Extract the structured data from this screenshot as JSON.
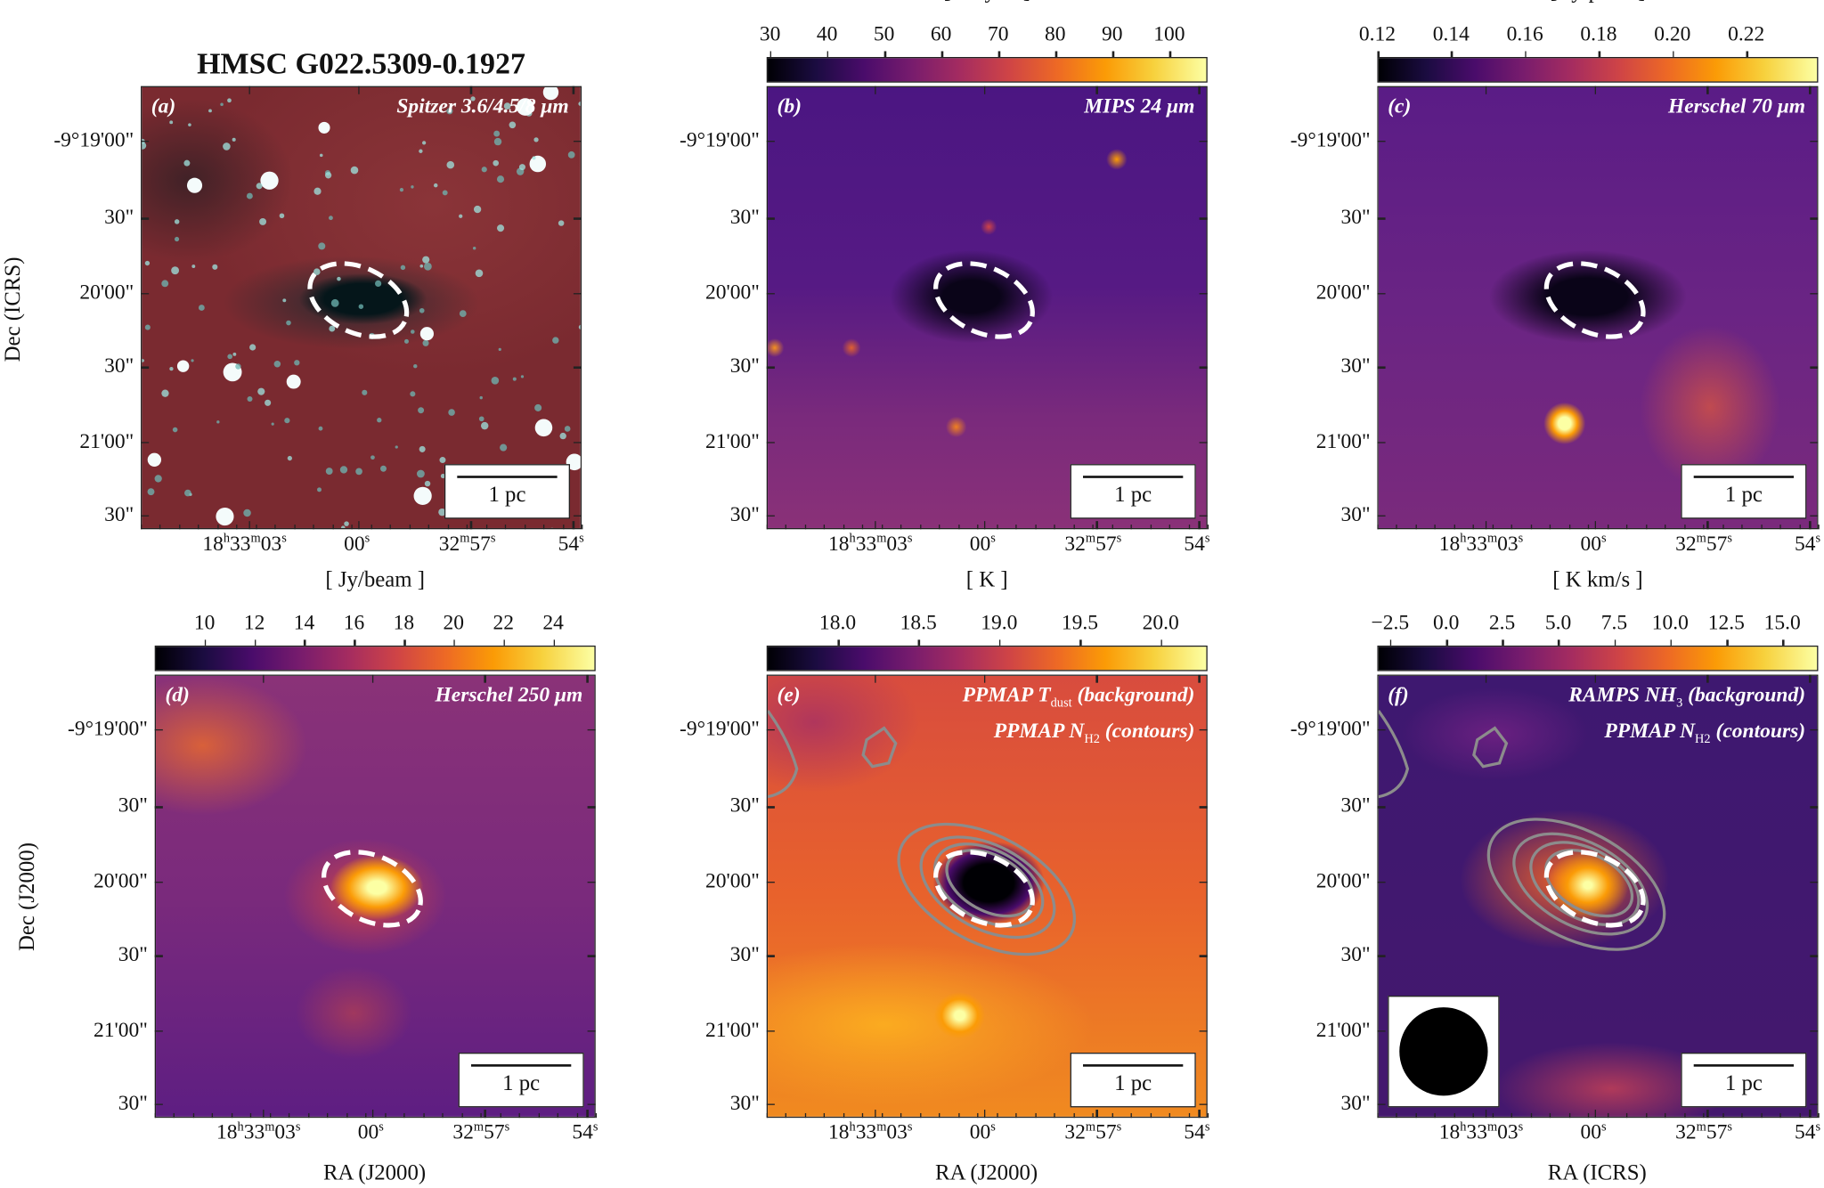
{
  "figure_title": "HMSC G022.5309-0.1927",
  "axis_labels": {
    "row1_ylabel": "Dec (ICRS)",
    "row2_ylabel": "Dec (J2000)",
    "xlabels": [
      "RA (J2000)",
      "RA (J2000)",
      "RA (ICRS)"
    ]
  },
  "dec_ticks": [
    "-9°19'00\"",
    "30\"",
    "20'00\"",
    "30\"",
    "21'00\"",
    "30\""
  ],
  "ra_ticks": [
    "18h33m03s",
    "00s",
    "32m57s",
    "54s"
  ],
  "scale_bar_label": "1 pc",
  "colors": {
    "colormap": "inferno",
    "ellipse": "#ffffff",
    "contours": "#8c8c8c"
  },
  "chart_data": [
    {
      "type": "heatmap",
      "panel": "(a)",
      "label": [
        "Spitzer 3.6/4.5/8 μm"
      ],
      "colorbar": null
    },
    {
      "type": "heatmap",
      "panel": "(b)",
      "label": [
        "MIPS 24 μm"
      ],
      "colorbar": {
        "unit": "[ MJy/sr ]",
        "ticks": [
          "30",
          "40",
          "50",
          "60",
          "70",
          "80",
          "90",
          "100"
        ],
        "tick_values": [
          30,
          40,
          50,
          60,
          70,
          80,
          90,
          100
        ],
        "range": [
          29.4,
          106.7
        ]
      }
    },
    {
      "type": "heatmap",
      "panel": "(c)",
      "label": [
        "Herschel 70 μm"
      ],
      "colorbar": {
        "unit": "[ Jy/pixel ]",
        "ticks": [
          "0.12",
          "0.14",
          "0.16",
          "0.18",
          "0.20",
          "0.22"
        ],
        "tick_values": [
          0.12,
          0.14,
          0.16,
          0.18,
          0.2,
          0.22
        ],
        "range": [
          0.12,
          0.2395
        ]
      }
    },
    {
      "type": "heatmap",
      "panel": "(d)",
      "label": [
        "Herschel 250 μm"
      ],
      "colorbar": {
        "unit": "[ Jy/beam ]",
        "ticks": [
          "10",
          "12",
          "14",
          "16",
          "18",
          "20",
          "22",
          "24"
        ],
        "tick_values": [
          10,
          12,
          14,
          16,
          18,
          20,
          22,
          24
        ],
        "range": [
          8.0,
          25.7
        ]
      }
    },
    {
      "type": "heatmap",
      "panel": "(e)",
      "label": [
        "PPMAP T|dust| (background)",
        "PPMAP N|H2| (contours)"
      ],
      "contours": true,
      "colorbar": {
        "unit": "[ K ]",
        "ticks": [
          "18.0",
          "18.5",
          "19.0",
          "19.5",
          "20.0"
        ],
        "tick_values": [
          18.0,
          18.5,
          19.0,
          19.5,
          20.0
        ],
        "range": [
          17.56,
          20.29
        ]
      }
    },
    {
      "type": "heatmap",
      "panel": "(f)",
      "label": [
        "RAMPS NH|3| (background)",
        "PPMAP N|H2| (contours)"
      ],
      "contours": true,
      "beam": true,
      "colorbar": {
        "unit": "[ K km/s ]",
        "ticks": [
          "−2.5",
          "0.0",
          "2.5",
          "5.0",
          "7.5",
          "10.0",
          "12.5",
          "15.0"
        ],
        "tick_values": [
          -2.5,
          0,
          2.5,
          5,
          7.5,
          10,
          12.5,
          15
        ],
        "range": [
          -3.07,
          16.6
        ]
      }
    }
  ]
}
